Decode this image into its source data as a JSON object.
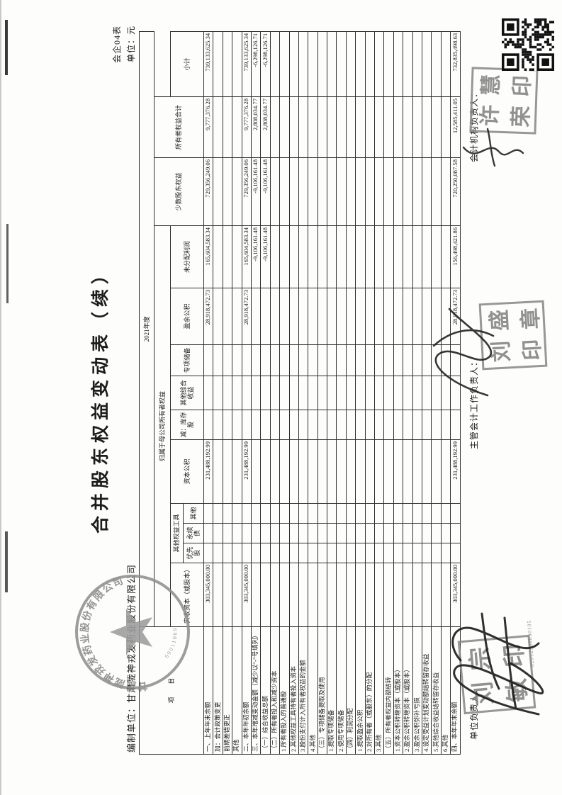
{
  "document": {
    "form_no": "会企04表",
    "unit_note": "单位：元",
    "title": "合并股东权益变动表（续）",
    "prepared_by": "编制单位：甘肃陇神戎发药业股份有限公司",
    "period": "2021年度"
  },
  "table": {
    "item_header": "项　　目",
    "parent_group_header": "归属于母公司所有者权益",
    "columns": {
      "paid_in_capital": "实收资本（或股本）",
      "other_equity_instruments": "其他权益工具",
      "preferred_shares": "优先股",
      "perpetual_bonds": "永续债",
      "other_instruments": "其他",
      "capital_reserve": "资本公积",
      "less_treasury_shares": "减：库存股",
      "other_comprehensive_income": "其他综合收益",
      "special_reserve": "专项储备",
      "surplus_reserve": "盈余公积",
      "retained_earnings": "未分配利润",
      "subtotal": "小计",
      "minority_interest": "少数股东权益",
      "total_equity": "所有者权益合计"
    },
    "rows": [
      {
        "label": "一、上年年末余额",
        "values": [
          "303,345,000.00",
          "",
          "",
          "",
          "231,488,192.99",
          "",
          "",
          "",
          "28,918,472.73",
          "165,604,583.34",
          "729,356,249.06",
          "9,777,376.28",
          "739,133,625.34"
        ]
      },
      {
        "label": "加：会计政策变更",
        "values": [
          "",
          "",
          "",
          "",
          "",
          "",
          "",
          "",
          "",
          "",
          "",
          "",
          ""
        ]
      },
      {
        "label": "前期差错更正",
        "values": [
          "",
          "",
          "",
          "",
          "",
          "",
          "",
          "",
          "",
          "",
          "",
          "",
          ""
        ]
      },
      {
        "label": "其他",
        "values": [
          "",
          "",
          "",
          "",
          "",
          "",
          "",
          "",
          "",
          "",
          "",
          "",
          ""
        ]
      },
      {
        "label": "二、本年年初余额",
        "values": [
          "303,345,000.00",
          "",
          "",
          "",
          "231,488,192.99",
          "",
          "",
          "",
          "28,918,472.73",
          "165,604,583.34",
          "729,356,249.06",
          "9,777,376.28",
          "739,133,625.34"
        ]
      },
      {
        "label": "三、本年增减变动金额（减少以“-”号填列）",
        "values": [
          "",
          "",
          "",
          "",
          "",
          "",
          "",
          "",
          "",
          "-9,106,161.48",
          "-9,106,161.48",
          "2,808,034.77",
          "-6,298,126.71"
        ]
      },
      {
        "label": "（一）综合收益总额",
        "values": [
          "",
          "",
          "",
          "",
          "",
          "",
          "",
          "",
          "",
          "-9,106,161.48",
          "-9,106,161.48",
          "2,808,034.77",
          "-6,298,126.71"
        ]
      },
      {
        "label": "（二）所有者投入和减少资本",
        "values": [
          "",
          "",
          "",
          "",
          "",
          "",
          "",
          "",
          "",
          "",
          "",
          "",
          ""
        ]
      },
      {
        "label": "1.所有者投入的普通股",
        "values": [
          "",
          "",
          "",
          "",
          "",
          "",
          "",
          "",
          "",
          "",
          "",
          "",
          ""
        ]
      },
      {
        "label": "2.其他权益工具持有者投入资本",
        "values": [
          "",
          "",
          "",
          "",
          "",
          "",
          "",
          "",
          "",
          "",
          "",
          "",
          ""
        ]
      },
      {
        "label": "3.股份支付计入所有者权益的金额",
        "values": [
          "",
          "",
          "",
          "",
          "",
          "",
          "",
          "",
          "",
          "",
          "",
          "",
          ""
        ]
      },
      {
        "label": "4.其他",
        "values": [
          "",
          "",
          "",
          "",
          "",
          "",
          "",
          "",
          "",
          "",
          "",
          "",
          ""
        ]
      },
      {
        "label": "（三）专项储备提取及使用",
        "values": [
          "",
          "",
          "",
          "",
          "",
          "",
          "",
          "",
          "",
          "",
          "",
          "",
          ""
        ]
      },
      {
        "label": "1.提取专项储备",
        "values": [
          "",
          "",
          "",
          "",
          "",
          "",
          "",
          "",
          "",
          "",
          "",
          "",
          ""
        ]
      },
      {
        "label": "2.使用专项储备",
        "values": [
          "",
          "",
          "",
          "",
          "",
          "",
          "",
          "",
          "",
          "",
          "",
          "",
          ""
        ]
      },
      {
        "label": "（四）利润分配",
        "values": [
          "",
          "",
          "",
          "",
          "",
          "",
          "",
          "",
          "",
          "",
          "",
          "",
          ""
        ]
      },
      {
        "label": "1.提取盈余公积",
        "values": [
          "",
          "",
          "",
          "",
          "",
          "",
          "",
          "",
          "",
          "",
          "",
          "",
          ""
        ]
      },
      {
        "label": "2.对所有者（或股东）的分配",
        "values": [
          "",
          "",
          "",
          "",
          "",
          "",
          "",
          "",
          "",
          "",
          "",
          "",
          ""
        ]
      },
      {
        "label": "3.其他",
        "values": [
          "",
          "",
          "",
          "",
          "",
          "",
          "",
          "",
          "",
          "",
          "",
          "",
          ""
        ]
      },
      {
        "label": "（五）所有者权益内部结转",
        "values": [
          "",
          "",
          "",
          "",
          "",
          "",
          "",
          "",
          "",
          "",
          "",
          "",
          ""
        ]
      },
      {
        "label": "1.资本公积转增资本（或股本）",
        "values": [
          "",
          "",
          "",
          "",
          "",
          "",
          "",
          "",
          "",
          "",
          "",
          "",
          ""
        ]
      },
      {
        "label": "2.盈余公积转增资本（或股本）",
        "values": [
          "",
          "",
          "",
          "",
          "",
          "",
          "",
          "",
          "",
          "",
          "",
          "",
          ""
        ]
      },
      {
        "label": "3.盈余公积弥补亏损",
        "values": [
          "",
          "",
          "",
          "",
          "",
          "",
          "",
          "",
          "",
          "",
          "",
          "",
          ""
        ]
      },
      {
        "label": "4.设定受益计划变动额结转留存收益",
        "values": [
          "",
          "",
          "",
          "",
          "",
          "",
          "",
          "",
          "",
          "",
          "",
          "",
          ""
        ]
      },
      {
        "label": "5.其他综合收益结转留存收益",
        "values": [
          "",
          "",
          "",
          "",
          "",
          "",
          "",
          "",
          "",
          "",
          "",
          "",
          ""
        ]
      },
      {
        "label": "6.其他",
        "values": [
          "",
          "",
          "",
          "",
          "",
          "",
          "",
          "",
          "",
          "",
          "",
          "",
          ""
        ]
      },
      {
        "label": "四、本年年末余额",
        "values": [
          "303,345,000.00",
          "",
          "",
          "",
          "231,488,192.99",
          "",
          "",
          "",
          "28,918,472.73",
          "156,498,421.86",
          "720,250,087.58",
          "12,585,411.05",
          "732,835,498.63"
        ]
      }
    ]
  },
  "footer": {
    "unit_head_label": "单位负责人：",
    "chief_accountant_label": "主管会计工作负责人：",
    "accounting_dept_head_label": "会计机构负责人："
  },
  "stamps": {
    "company_seal": {
      "company": "甘肃陇神戎发药业股份有限公司",
      "code": "69011069"
    },
    "unit_head_seal": {
      "c0": "刘",
      "c1": "宗",
      "c2": "敏",
      "c3": "印",
      "cert_no": "62012306690105"
    },
    "chief_accountant_seal": {
      "c0": "刘",
      "c1": "盛",
      "c2": "印",
      "c3": "章"
    },
    "accounting_head_seal": {
      "c0": "许",
      "c1": "慧",
      "c2": "荣",
      "c3": "印"
    }
  }
}
